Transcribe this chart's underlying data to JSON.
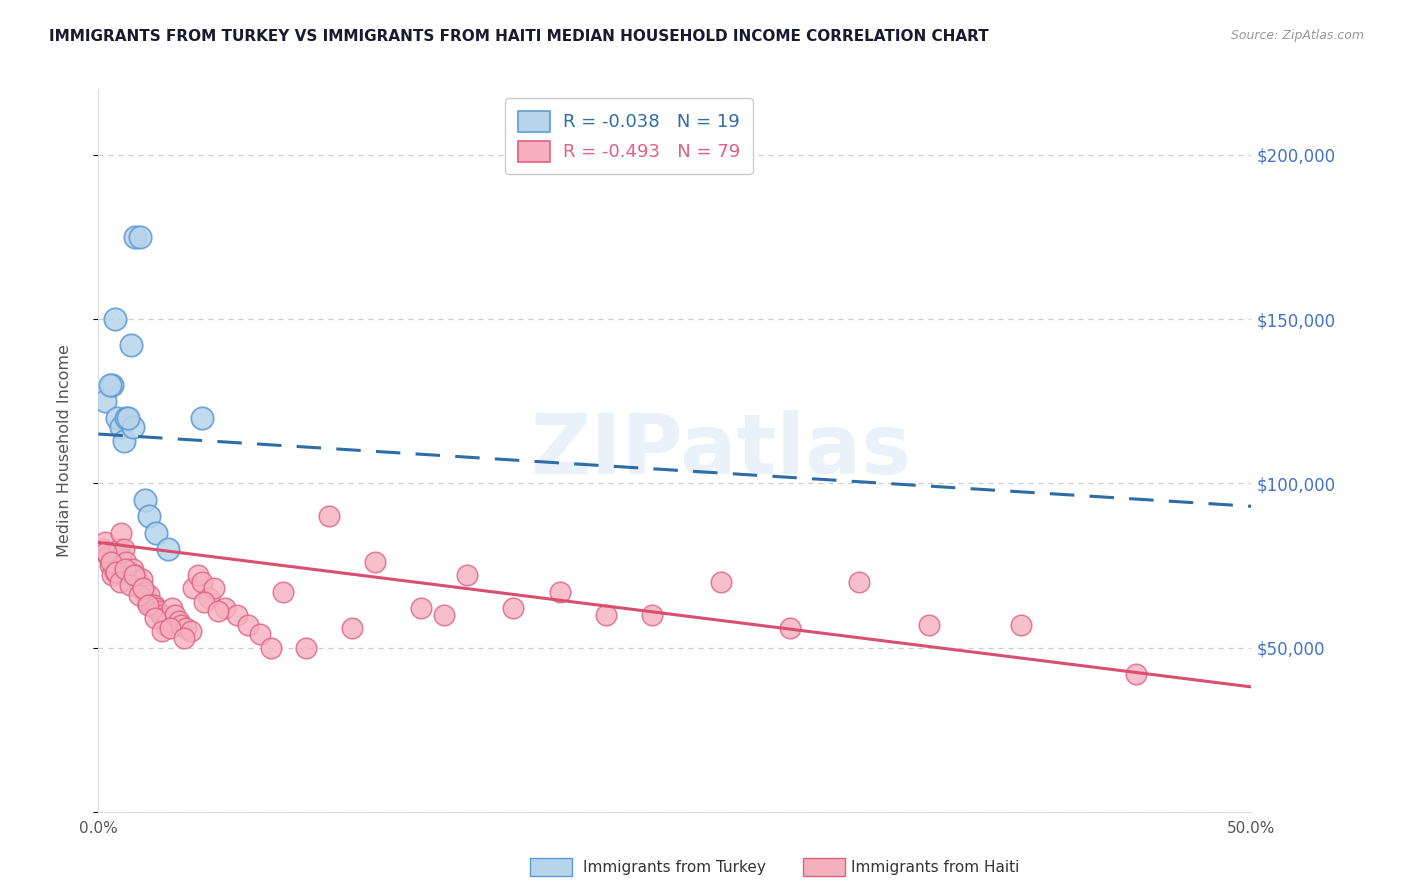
{
  "title": "IMMIGRANTS FROM TURKEY VS IMMIGRANTS FROM HAITI MEDIAN HOUSEHOLD INCOME CORRELATION CHART",
  "source": "Source: ZipAtlas.com",
  "ylabel": "Median Household Income",
  "xlim": [
    0.0,
    50.0
  ],
  "ylim": [
    0,
    220000
  ],
  "yticks": [
    0,
    50000,
    100000,
    150000,
    200000
  ],
  "ytick_labels": [
    "",
    "$50,000",
    "$100,000",
    "$150,000",
    "$200,000"
  ],
  "xticks": [
    0,
    10,
    20,
    30,
    40,
    50
  ],
  "xtick_labels": [
    "0.0%",
    "",
    "",
    "",
    "",
    "50.0%"
  ],
  "turkey_fill": "#b8d4ea",
  "turkey_edge": "#5b9bd5",
  "haiti_fill": "#f5b0c0",
  "haiti_edge": "#e06080",
  "turkey_line_color": "#2e6ca6",
  "haiti_line_color": "#d94f70",
  "legend_turkey": "R = -0.038   N = 19",
  "legend_haiti": "R = -0.493   N = 79",
  "watermark": "ZIPatlas",
  "turkey_x": [
    0.3,
    0.6,
    0.7,
    0.8,
    1.0,
    1.1,
    1.2,
    1.4,
    1.5,
    1.6,
    1.8,
    2.0,
    2.2,
    2.5,
    3.0,
    0.5,
    0.9,
    1.3,
    4.5
  ],
  "turkey_y": [
    125000,
    130000,
    150000,
    120000,
    117000,
    113000,
    120000,
    142000,
    117000,
    175000,
    175000,
    95000,
    90000,
    85000,
    80000,
    130000,
    78000,
    120000,
    120000
  ],
  "haiti_x": [
    0.2,
    0.3,
    0.4,
    0.5,
    0.6,
    0.7,
    0.8,
    0.9,
    1.0,
    1.1,
    1.2,
    1.3,
    1.4,
    1.5,
    1.6,
    1.7,
    1.8,
    1.9,
    2.0,
    2.1,
    2.2,
    2.3,
    2.4,
    2.5,
    2.6,
    2.7,
    2.8,
    2.9,
    3.0,
    3.2,
    3.3,
    3.5,
    3.6,
    3.8,
    4.0,
    4.1,
    4.3,
    4.5,
    4.8,
    5.0,
    5.5,
    6.0,
    6.5,
    7.0,
    8.0,
    9.0,
    10.0,
    11.0,
    12.0,
    14.0,
    16.0,
    18.0,
    20.0,
    22.0,
    24.0,
    27.0,
    30.0,
    33.0,
    36.0,
    40.0,
    0.35,
    0.55,
    0.75,
    0.95,
    1.15,
    1.35,
    1.55,
    1.75,
    1.95,
    2.15,
    2.45,
    2.75,
    3.1,
    3.7,
    4.6,
    5.2,
    7.5,
    15.0,
    45.0
  ],
  "haiti_y": [
    80000,
    82000,
    78000,
    75000,
    72000,
    73000,
    77000,
    80000,
    85000,
    80000,
    76000,
    73000,
    72000,
    74000,
    72000,
    70000,
    68000,
    71000,
    67000,
    64000,
    66000,
    63000,
    63000,
    62000,
    61000,
    60000,
    59000,
    57000,
    58000,
    62000,
    60000,
    58000,
    57000,
    56000,
    55000,
    68000,
    72000,
    70000,
    65000,
    68000,
    62000,
    60000,
    57000,
    54000,
    67000,
    50000,
    90000,
    56000,
    76000,
    62000,
    72000,
    62000,
    67000,
    60000,
    60000,
    70000,
    56000,
    70000,
    57000,
    57000,
    79000,
    76000,
    73000,
    70000,
    74000,
    69000,
    72000,
    66000,
    68000,
    63000,
    59000,
    55000,
    56000,
    53000,
    64000,
    61000,
    50000,
    60000,
    42000
  ]
}
